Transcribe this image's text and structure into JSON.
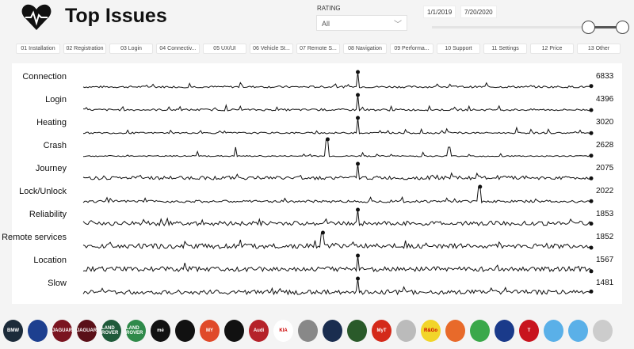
{
  "header": {
    "title": "Top Issues",
    "icon": "heart-pulse-icon"
  },
  "rating": {
    "label": "RATING",
    "value": "All"
  },
  "date_range": {
    "start": "1/1/2019",
    "end": "7/20/2020"
  },
  "tabs": [
    "01 Installation",
    "02 Registration",
    "03 Login",
    "04 Connectiv...",
    "05 UX/UI",
    "06 Vehicle St...",
    "07 Remote S...",
    "08 Navigation",
    "09 Performa...",
    "10 Support",
    "11 Settings",
    "12 Price",
    "13 Other"
  ],
  "issues": [
    {
      "label": "Connection",
      "value": "6833"
    },
    {
      "label": "Login",
      "value": "4396"
    },
    {
      "label": "Heating",
      "value": "3020"
    },
    {
      "label": "Crash",
      "value": "2628"
    },
    {
      "label": "Journey",
      "value": "2075"
    },
    {
      "label": "Lock/Unlock",
      "value": "2022"
    },
    {
      "label": "Reliability",
      "value": "1853"
    },
    {
      "label": "Remote services",
      "value": "1852"
    },
    {
      "label": "Location",
      "value": "1567"
    },
    {
      "label": "Slow",
      "value": "1481"
    }
  ],
  "logos": [
    {
      "name": "BMW",
      "color": "#1c2b3a"
    },
    {
      "name": "",
      "color": "#1d3f8f"
    },
    {
      "name": "JAGUAR",
      "color": "#7a1420"
    },
    {
      "name": "JAGUAR",
      "color": "#5a1018"
    },
    {
      "name": "LAND ROVER",
      "color": "#1f5a3a"
    },
    {
      "name": "LAND ROVER",
      "color": "#2f8a4a"
    },
    {
      "name": "mé",
      "color": "#111"
    },
    {
      "name": "",
      "color": "#111"
    },
    {
      "name": "MY",
      "color": "#e04a2a"
    },
    {
      "name": "",
      "color": "#111"
    },
    {
      "name": "Audi",
      "color": "#b5222a"
    },
    {
      "name": "KIA",
      "color": "#ffffff"
    },
    {
      "name": "",
      "color": "#888"
    },
    {
      "name": "",
      "color": "#1a2d4f"
    },
    {
      "name": "",
      "color": "#2a5a2a"
    },
    {
      "name": "MyT",
      "color": "#d42a1a"
    },
    {
      "name": "",
      "color": "#bbb"
    },
    {
      "name": "R&Go",
      "color": "#f2d52a"
    },
    {
      "name": "",
      "color": "#e86a2a"
    },
    {
      "name": "",
      "color": "#3aa84a"
    },
    {
      "name": "",
      "color": "#1a3a8a"
    },
    {
      "name": "T",
      "color": "#c8141e"
    },
    {
      "name": "",
      "color": "#5ab0e8"
    },
    {
      "name": "",
      "color": "#5ab0e8"
    },
    {
      "name": "",
      "color": "#ccc"
    }
  ]
}
